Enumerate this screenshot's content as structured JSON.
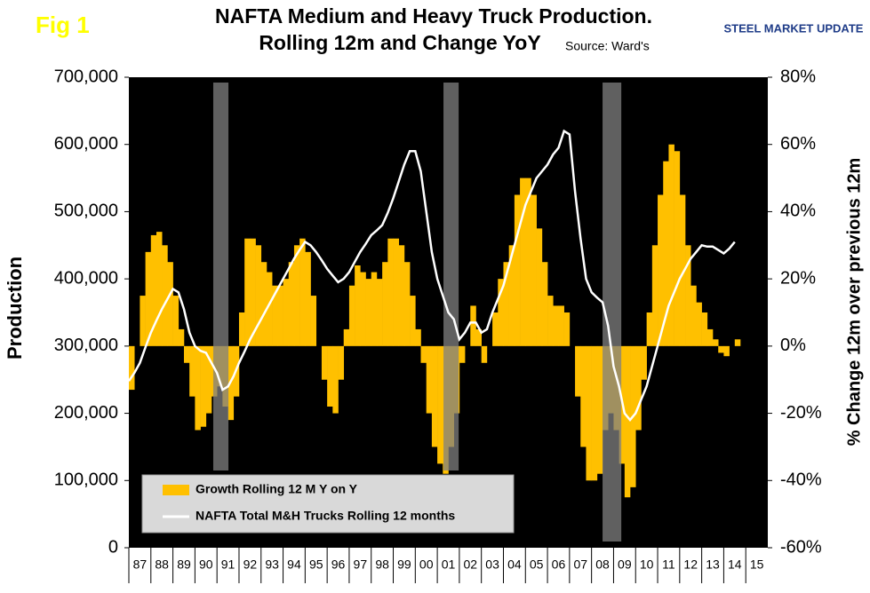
{
  "chart_data": {
    "type": "bar-line",
    "fig_label": "Fig 1",
    "title": "NAFTA Medium and Heavy Truck Production.",
    "title_line2": "Rolling 12m and Change YoY",
    "source": "Source: Ward's",
    "logo": "STEEL MARKET UPDATE",
    "y_label": "Production",
    "y2_label": "% Change 12m over previous 12m",
    "xlim": [
      1987,
      2016
    ],
    "xticks": [
      {
        "value": 1987,
        "label": "87"
      },
      {
        "value": 1988,
        "label": "88"
      },
      {
        "value": 1989,
        "label": "89"
      },
      {
        "value": 1990,
        "label": "90"
      },
      {
        "value": 1991,
        "label": "91"
      },
      {
        "value": 1992,
        "label": "92"
      },
      {
        "value": 1993,
        "label": "93"
      },
      {
        "value": 1994,
        "label": "94"
      },
      {
        "value": 1995,
        "label": "95"
      },
      {
        "value": 1996,
        "label": "96"
      },
      {
        "value": 1997,
        "label": "97"
      },
      {
        "value": 1998,
        "label": "98"
      },
      {
        "value": 1999,
        "label": "99"
      },
      {
        "value": 2000,
        "label": "00"
      },
      {
        "value": 2001,
        "label": "01"
      },
      {
        "value": 2002,
        "label": "02"
      },
      {
        "value": 2003,
        "label": "03"
      },
      {
        "value": 2004,
        "label": "04"
      },
      {
        "value": 2005,
        "label": "05"
      },
      {
        "value": 2006,
        "label": "06"
      },
      {
        "value": 2007,
        "label": "07"
      },
      {
        "value": 2008,
        "label": "08"
      },
      {
        "value": 2009,
        "label": "09"
      },
      {
        "value": 2010,
        "label": "10"
      },
      {
        "value": 2011,
        "label": "11"
      },
      {
        "value": 2012,
        "label": "12"
      },
      {
        "value": 2013,
        "label": "13"
      },
      {
        "value": 2014,
        "label": "14"
      },
      {
        "value": 2015,
        "label": "15"
      }
    ],
    "ylim": [
      0,
      700000
    ],
    "yticks": [
      0,
      {
        "value": 100000,
        "label": "100,000"
      },
      {
        "value": 200000,
        "label": "200,000"
      },
      {
        "value": 300000,
        "label": "300,000"
      },
      {
        "value": 400000,
        "label": "400,000"
      },
      {
        "value": 500000,
        "label": "500,000"
      },
      {
        "value": 600000,
        "label": "600,000"
      },
      {
        "value": 700000,
        "label": "700,000"
      }
    ],
    "y2lim": [
      -60,
      80
    ],
    "y2ticks": [
      {
        "value": -60,
        "label": "-60%"
      },
      {
        "value": -40,
        "label": "-40%"
      },
      {
        "value": -20,
        "label": "-20%"
      },
      {
        "value": 0,
        "label": "0%"
      },
      {
        "value": 20,
        "label": "20%"
      },
      {
        "value": 40,
        "label": "40%"
      },
      {
        "value": 60,
        "label": "60%"
      },
      {
        "value": 80,
        "label": "80%"
      }
    ],
    "shaded_periods": [
      [
        1990.83,
        1991.52
      ],
      [
        2001.28,
        2001.97
      ],
      [
        2008.5,
        2009.35
      ]
    ],
    "x": [
      1987,
      1987.25,
      1987.5,
      1987.75,
      1988,
      1988.25,
      1988.5,
      1988.75,
      1989,
      1989.25,
      1989.5,
      1989.75,
      1990,
      1990.25,
      1990.5,
      1990.75,
      1991,
      1991.25,
      1991.5,
      1991.75,
      1992,
      1992.25,
      1992.5,
      1992.75,
      1993,
      1993.25,
      1993.5,
      1993.75,
      1994,
      1994.25,
      1994.5,
      1994.75,
      1995,
      1995.25,
      1995.5,
      1995.75,
      1996,
      1996.25,
      1996.5,
      1996.75,
      1997,
      1997.25,
      1997.5,
      1997.75,
      1998,
      1998.25,
      1998.5,
      1998.75,
      1999,
      1999.25,
      1999.5,
      1999.75,
      2000,
      2000.25,
      2000.5,
      2000.75,
      2001,
      2001.25,
      2001.5,
      2001.75,
      2002,
      2002.25,
      2002.5,
      2002.75,
      2003,
      2003.25,
      2003.5,
      2003.75,
      2004,
      2004.25,
      2004.5,
      2004.75,
      2005,
      2005.25,
      2005.5,
      2005.75,
      2006,
      2006.25,
      2006.5,
      2006.75,
      2007,
      2007.25,
      2007.5,
      2007.75,
      2008,
      2008.25,
      2008.5,
      2008.75,
      2009,
      2009.25,
      2009.5,
      2009.75,
      2010,
      2010.25,
      2010.5,
      2010.75,
      2011,
      2011.25,
      2011.5,
      2011.75,
      2012,
      2012.25,
      2012.5,
      2012.75,
      2013,
      2013.25,
      2013.5,
      2013.75,
      2014,
      2014.25,
      2014.5
    ],
    "series": [
      {
        "name": "Growth Rolling 12 M Y on Y",
        "color": "#ffc000",
        "axis": "y2",
        "kind": "bar",
        "values": [
          -13,
          0,
          15,
          28,
          33,
          34,
          30,
          25,
          15,
          5,
          -5,
          -15,
          -25,
          -24,
          -20,
          -15,
          -12,
          -18,
          -22,
          -15,
          10,
          32,
          32,
          30,
          25,
          22,
          18,
          18,
          20,
          25,
          30,
          32,
          28,
          15,
          0,
          -10,
          -18,
          -20,
          -10,
          5,
          18,
          24,
          22,
          20,
          22,
          20,
          25,
          32,
          32,
          30,
          25,
          15,
          5,
          -5,
          -20,
          -30,
          -35,
          -38,
          -30,
          -20,
          -5,
          0,
          12,
          5,
          -5,
          0,
          10,
          20,
          25,
          30,
          45,
          50,
          50,
          45,
          35,
          25,
          15,
          12,
          12,
          10,
          0,
          -15,
          -30,
          -40,
          -40,
          -38,
          -25,
          -20,
          -25,
          -35,
          -45,
          -42,
          -25,
          -10,
          10,
          30,
          45,
          55,
          60,
          58,
          45,
          30,
          18,
          13,
          10,
          5,
          2,
          -2,
          -3,
          0,
          2
        ]
      },
      {
        "name": "NAFTA Total M&H Trucks Rolling 12 months",
        "color": "#ffffff",
        "axis": "y",
        "kind": "line",
        "values": [
          248000,
          260000,
          275000,
          298000,
          320000,
          338000,
          355000,
          370000,
          385000,
          380000,
          355000,
          320000,
          300000,
          293000,
          290000,
          275000,
          260000,
          235000,
          240000,
          255000,
          275000,
          292000,
          310000,
          325000,
          340000,
          355000,
          370000,
          385000,
          400000,
          415000,
          430000,
          443000,
          455000,
          450000,
          440000,
          428000,
          415000,
          405000,
          395000,
          400000,
          410000,
          425000,
          440000,
          452000,
          465000,
          472000,
          480000,
          498000,
          520000,
          545000,
          570000,
          590000,
          590000,
          560000,
          500000,
          440000,
          400000,
          375000,
          350000,
          340000,
          310000,
          320000,
          335000,
          335000,
          320000,
          325000,
          350000,
          370000,
          390000,
          420000,
          450000,
          480000,
          510000,
          530000,
          550000,
          560000,
          570000,
          585000,
          595000,
          620000,
          615000,
          530000,
          460000,
          400000,
          380000,
          372000,
          365000,
          330000,
          270000,
          240000,
          200000,
          190000,
          200000,
          220000,
          240000,
          270000,
          300000,
          330000,
          360000,
          380000,
          400000,
          415000,
          430000,
          440000,
          450000,
          448000,
          448000,
          443000,
          438000,
          445000,
          455000
        ]
      }
    ]
  }
}
